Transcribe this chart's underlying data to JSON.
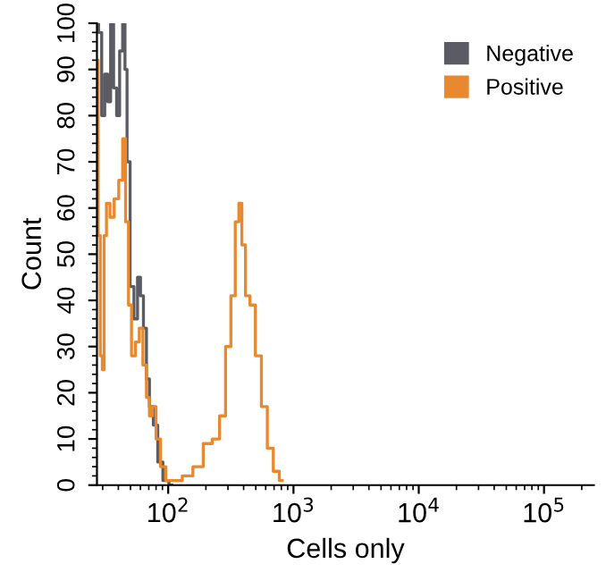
{
  "chart_data": {
    "type": "step",
    "xlabel": "Cells only",
    "ylabel": "Count",
    "log": "x",
    "grid": false,
    "legend": "top right",
    "xlim": [
      27,
      250000
    ],
    "xticks": [
      {
        "value": 100,
        "label": "10$^{2}$"
      },
      {
        "value": 1000,
        "label": "10$^{3}$"
      },
      {
        "value": 10000,
        "label": "10$^{4}$"
      },
      {
        "value": 100000,
        "label": "10$^{5}$"
      }
    ],
    "ylim": [
      0,
      100
    ],
    "yticks": [
      0,
      10,
      20,
      30,
      40,
      50,
      60,
      70,
      80,
      90,
      100
    ],
    "series": [
      {
        "name": "Negative",
        "color": "#5b5b63",
        "x": [
          27.1,
          28.6,
          30.3,
          32.0,
          33.8,
          35.6,
          37.7,
          39.8,
          42.1,
          44.5,
          45.9,
          48.0,
          51.3,
          55.3,
          58.5,
          61.7,
          65.2,
          68.9,
          72.8,
          79.4,
          85.7,
          95.7,
          107
        ],
        "values": [
          100,
          98,
          80,
          89,
          83,
          100,
          86,
          80,
          94,
          100,
          90,
          70,
          43,
          36,
          45,
          41,
          34,
          23,
          17,
          13,
          5,
          1,
          0
        ]
      },
      {
        "name": "Positive",
        "color": "#e8892f",
        "x": [
          27.1,
          28.1,
          29.3,
          30.3,
          31.3,
          33.0,
          35.6,
          38.5,
          42.1,
          44.5,
          46.9,
          49.5,
          52.4,
          57.1,
          60.4,
          65.2,
          68.9,
          72.8,
          76.9,
          83.0,
          90.6,
          101,
          119,
          140,
          175,
          206,
          243,
          271,
          303,
          330,
          356,
          377,
          398,
          430,
          469,
          524,
          585,
          652,
          728,
          813
        ],
        "values": [
          92,
          54,
          28,
          25,
          54,
          61,
          58,
          62,
          66,
          75,
          57,
          39,
          28,
          31,
          34,
          26,
          19,
          15,
          17,
          10,
          4,
          1,
          1,
          2,
          4,
          9,
          10,
          15,
          30,
          41,
          57,
          61,
          52,
          41,
          39,
          28,
          17,
          8,
          3,
          1
        ]
      }
    ]
  }
}
